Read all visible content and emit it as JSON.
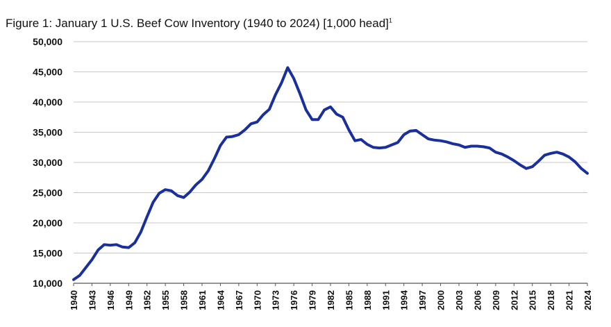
{
  "chart_data": {
    "type": "line",
    "title": "Figure 1: January 1 U.S. Beef Cow Inventory (1940 to 2024) [1,000 head]",
    "title_footnote": "1",
    "xlabel": "",
    "ylabel": "",
    "ylim": [
      10000,
      50000
    ],
    "y_ticks": [
      "10,000",
      "15,000",
      "20,000",
      "25,000",
      "30,000",
      "35,000",
      "40,000",
      "45,000",
      "50,000"
    ],
    "x_ticks": [
      "1940",
      "1943",
      "1946",
      "1949",
      "1952",
      "1955",
      "1958",
      "1961",
      "1964",
      "1967",
      "1970",
      "1973",
      "1976",
      "1979",
      "1982",
      "1985",
      "1988",
      "1991",
      "1994",
      "1997",
      "2000",
      "2003",
      "2006",
      "2009",
      "2012",
      "2015",
      "2018",
      "2021",
      "2024"
    ],
    "grid": "horizontal",
    "legend": "none",
    "line_color": "#1a2f9e",
    "series": [
      {
        "x": [
          1940,
          1941,
          1942,
          1943,
          1944,
          1945,
          1946,
          1947,
          1948,
          1949,
          1950,
          1951,
          1952,
          1953,
          1954,
          1955,
          1956,
          1957,
          1958,
          1959,
          1960,
          1961,
          1962,
          1963,
          1964,
          1965,
          1966,
          1967,
          1968,
          1969,
          1970,
          1971,
          1972,
          1973,
          1974,
          1975,
          1976,
          1977,
          1978,
          1979,
          1980,
          1981,
          1982,
          1983,
          1984,
          1985,
          1986,
          1987,
          1988,
          1989,
          1990,
          1991,
          1992,
          1993,
          1994,
          1995,
          1996,
          1997,
          1998,
          1999,
          2000,
          2001,
          2002,
          2003,
          2004,
          2005,
          2006,
          2007,
          2008,
          2009,
          2010,
          2011,
          2012,
          2013,
          2014,
          2015,
          2016,
          2017,
          2018,
          2019,
          2020,
          2021,
          2022,
          2023,
          2024
        ],
        "values": [
          10600,
          11300,
          12600,
          13900,
          15500,
          16400,
          16300,
          16400,
          16000,
          15900,
          16700,
          18500,
          21000,
          23400,
          24900,
          25500,
          25300,
          24500,
          24200,
          25100,
          26300,
          27200,
          28600,
          30600,
          32800,
          34200,
          34300,
          34600,
          35400,
          36400,
          36700,
          37900,
          38800,
          41200,
          43200,
          45700,
          43900,
          41400,
          38700,
          37100,
          37100,
          38700,
          39200,
          38000,
          37500,
          35400,
          33600,
          33800,
          33000,
          32500,
          32400,
          32500,
          32900,
          33300,
          34600,
          35200,
          35300,
          34600,
          33900,
          33700,
          33600,
          33400,
          33100,
          32900,
          32500,
          32700,
          32700,
          32600,
          32400,
          31700,
          31400,
          30900,
          30300,
          29600,
          29000,
          29300,
          30200,
          31200,
          31500,
          31700,
          31400,
          30900,
          30100,
          29000,
          28200
        ]
      }
    ]
  }
}
